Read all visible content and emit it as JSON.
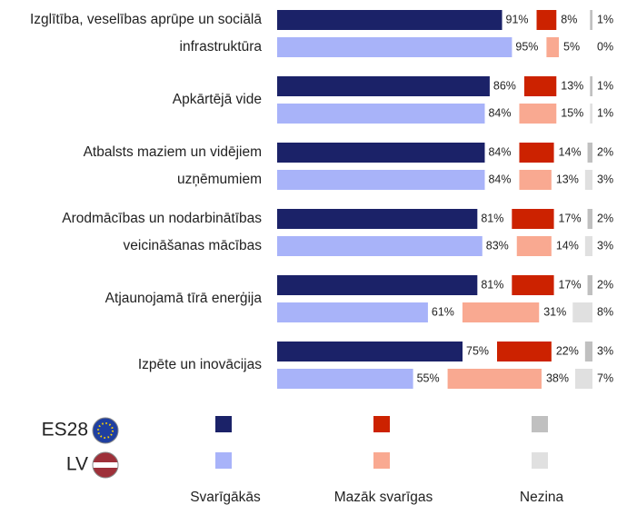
{
  "chart_data": {
    "type": "bar",
    "categories": [
      [
        "Izglītība, veselības aprūpe un sociālā",
        "infrastruktūra"
      ],
      [
        "Apkārtējā vide"
      ],
      [
        "Atbalsts maziem un vidējiem",
        "uzņēmumiem"
      ],
      [
        "Arodmācības un nodarbinātības",
        "veicināšanas mācības"
      ],
      [
        "Atjaunojamā tīrā enerģija"
      ],
      [
        "Izpēte un inovācijas"
      ]
    ],
    "groups": [
      "ES28",
      "LV"
    ],
    "xlim": [
      0,
      100
    ],
    "series": [
      {
        "name": "Svarīgākās",
        "colors": [
          "#1b2268",
          "#a8b3f9"
        ],
        "values": [
          [
            91,
            95
          ],
          [
            86,
            84
          ],
          [
            84,
            84
          ],
          [
            81,
            83
          ],
          [
            81,
            61
          ],
          [
            75,
            55
          ]
        ],
        "value_labels": [
          [
            "91%",
            "95%"
          ],
          [
            "86%",
            "84%"
          ],
          [
            "84%",
            "84%"
          ],
          [
            "81%",
            "83%"
          ],
          [
            "81%",
            "61%"
          ],
          [
            "75%",
            "55%"
          ]
        ]
      },
      {
        "name": "Mazāk svarīgas",
        "colors": [
          "#cc2200",
          "#f9a991"
        ],
        "values": [
          [
            8,
            5
          ],
          [
            13,
            15
          ],
          [
            14,
            13
          ],
          [
            17,
            14
          ],
          [
            17,
            31
          ],
          [
            22,
            38
          ]
        ],
        "value_labels": [
          [
            "8%",
            "5%"
          ],
          [
            "13%",
            "15%"
          ],
          [
            "14%",
            "13%"
          ],
          [
            "17%",
            "14%"
          ],
          [
            "17%",
            "31%"
          ],
          [
            "22%",
            "38%"
          ]
        ]
      },
      {
        "name": "Nezina",
        "colors": [
          "#c0c0c0",
          "#e0e0e0"
        ],
        "values": [
          [
            1,
            0
          ],
          [
            1,
            1
          ],
          [
            2,
            3
          ],
          [
            2,
            3
          ],
          [
            2,
            8
          ],
          [
            3,
            7
          ]
        ],
        "value_labels": [
          [
            "1%",
            "0%"
          ],
          [
            "1%",
            "1%"
          ],
          [
            "2%",
            "3%"
          ],
          [
            "2%",
            "3%"
          ],
          [
            "2%",
            "8%"
          ],
          [
            "3%",
            "7%"
          ]
        ]
      }
    ]
  }
}
